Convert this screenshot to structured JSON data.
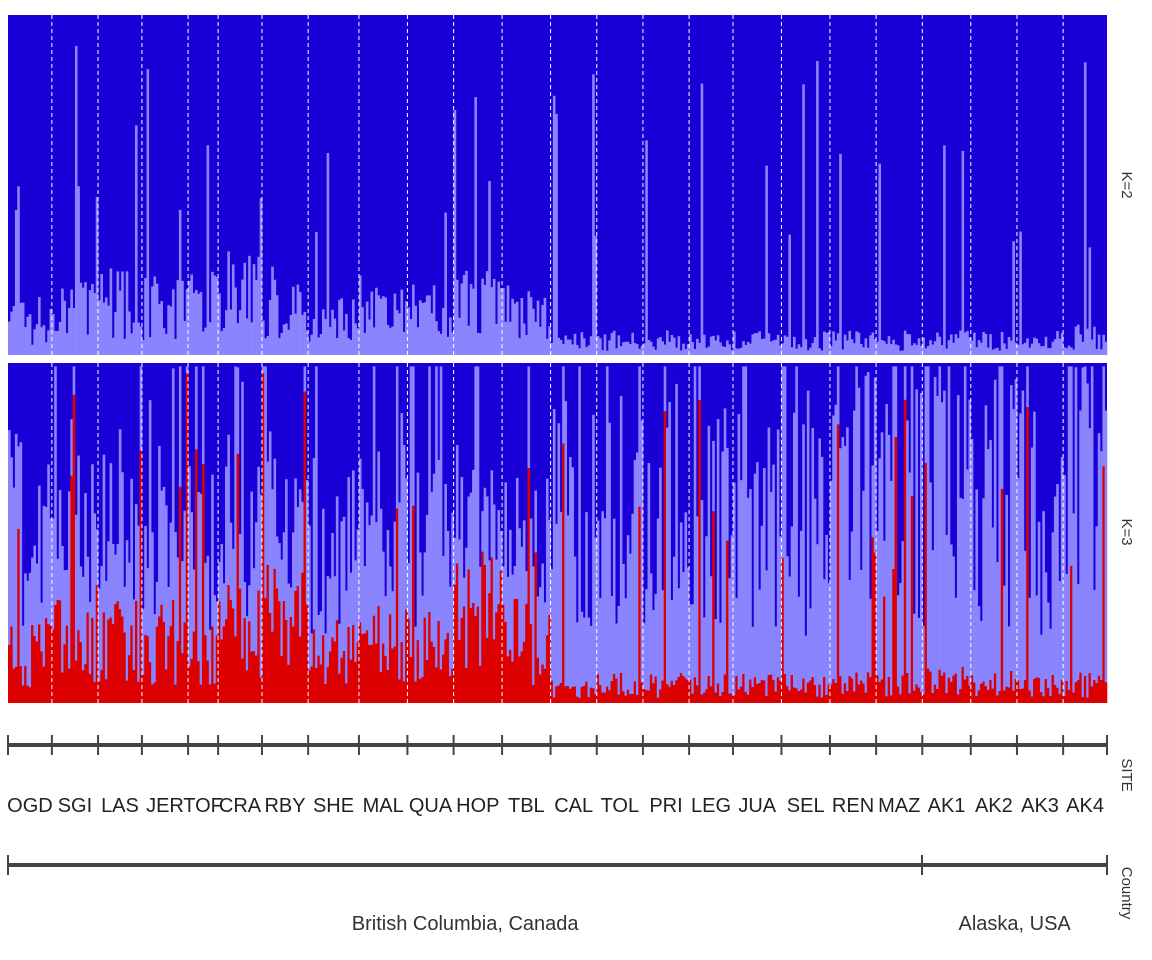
{
  "chart_data": {
    "type": "bar",
    "subtype": "stacked-admixture",
    "grid": false,
    "legend": "none",
    "colors": {
      "cluster_dark_blue": "#1a00d6",
      "cluster_light_blue": "#8a84ff",
      "cluster_red": "#dd0000",
      "site_separator": "#ffffff",
      "axis": "#444444"
    },
    "panels": [
      {
        "label": "K=2",
        "clusters": [
          "cluster_light_blue",
          "cluster_dark_blue"
        ]
      },
      {
        "label": "K=3",
        "clusters": [
          "cluster_red",
          "cluster_light_blue",
          "cluster_dark_blue"
        ]
      }
    ],
    "site_axis_label": "SITE",
    "country_axis_label": "Country",
    "sites": [
      {
        "code": "OGD",
        "n": 19,
        "k2_light": 0.1,
        "k3_red": 0.14,
        "k3_light": 0.36
      },
      {
        "code": "SGI",
        "n": 20,
        "k2_light": 0.12,
        "k3_red": 0.2,
        "k3_light": 0.3
      },
      {
        "code": "LAS",
        "n": 19,
        "k2_light": 0.15,
        "k3_red": 0.18,
        "k3_light": 0.3
      },
      {
        "code": "JER",
        "n": 20,
        "k2_light": 0.13,
        "k3_red": 0.17,
        "k3_light": 0.3
      },
      {
        "code": "TOF",
        "n": 13,
        "k2_light": 0.14,
        "k3_red": 0.15,
        "k3_light": 0.33
      },
      {
        "code": "CRA",
        "n": 19,
        "k2_light": 0.18,
        "k3_red": 0.22,
        "k3_light": 0.3
      },
      {
        "code": "RBY",
        "n": 20,
        "k2_light": 0.15,
        "k3_red": 0.26,
        "k3_light": 0.25
      },
      {
        "code": "SHE",
        "n": 22,
        "k2_light": 0.1,
        "k3_red": 0.14,
        "k3_light": 0.3
      },
      {
        "code": "MAL",
        "n": 21,
        "k2_light": 0.13,
        "k3_red": 0.16,
        "k3_light": 0.3
      },
      {
        "code": "QUA",
        "n": 20,
        "k2_light": 0.13,
        "k3_red": 0.15,
        "k3_light": 0.31
      },
      {
        "code": "HOP",
        "n": 21,
        "k2_light": 0.14,
        "k3_red": 0.25,
        "k3_light": 0.24
      },
      {
        "code": "TBL",
        "n": 21,
        "k2_light": 0.12,
        "k3_red": 0.17,
        "k3_light": 0.28
      },
      {
        "code": "CAL",
        "n": 20,
        "k2_light": 0.04,
        "k3_red": 0.04,
        "k3_light": 0.55
      },
      {
        "code": "TOL",
        "n": 20,
        "k2_light": 0.04,
        "k3_red": 0.05,
        "k3_light": 0.53
      },
      {
        "code": "PRI",
        "n": 20,
        "k2_light": 0.04,
        "k3_red": 0.05,
        "k3_light": 0.52
      },
      {
        "code": "LEG",
        "n": 19,
        "k2_light": 0.04,
        "k3_red": 0.05,
        "k3_light": 0.5
      },
      {
        "code": "JUA",
        "n": 21,
        "k2_light": 0.04,
        "k3_red": 0.05,
        "k3_light": 0.52
      },
      {
        "code": "SEL",
        "n": 21,
        "k2_light": 0.04,
        "k3_red": 0.05,
        "k3_light": 0.54
      },
      {
        "code": "REN",
        "n": 20,
        "k2_light": 0.04,
        "k3_red": 0.05,
        "k3_light": 0.52
      },
      {
        "code": "MAZ",
        "n": 20,
        "k2_light": 0.04,
        "k3_red": 0.05,
        "k3_light": 0.54
      },
      {
        "code": "AK1",
        "n": 21,
        "k2_light": 0.04,
        "k3_red": 0.06,
        "k3_light": 0.52
      },
      {
        "code": "AK2",
        "n": 20,
        "k2_light": 0.04,
        "k3_red": 0.06,
        "k3_light": 0.5
      },
      {
        "code": "AK3",
        "n": 20,
        "k2_light": 0.04,
        "k3_red": 0.05,
        "k3_light": 0.52
      },
      {
        "code": "AK4",
        "n": 19,
        "k2_light": 0.05,
        "k3_red": 0.05,
        "k3_light": 0.55
      }
    ],
    "countries": [
      {
        "name": "British Columbia, Canada",
        "first_site": 0,
        "last_site": 19
      },
      {
        "name": "Alaska, USA",
        "first_site": 20,
        "last_site": 23
      }
    ]
  }
}
